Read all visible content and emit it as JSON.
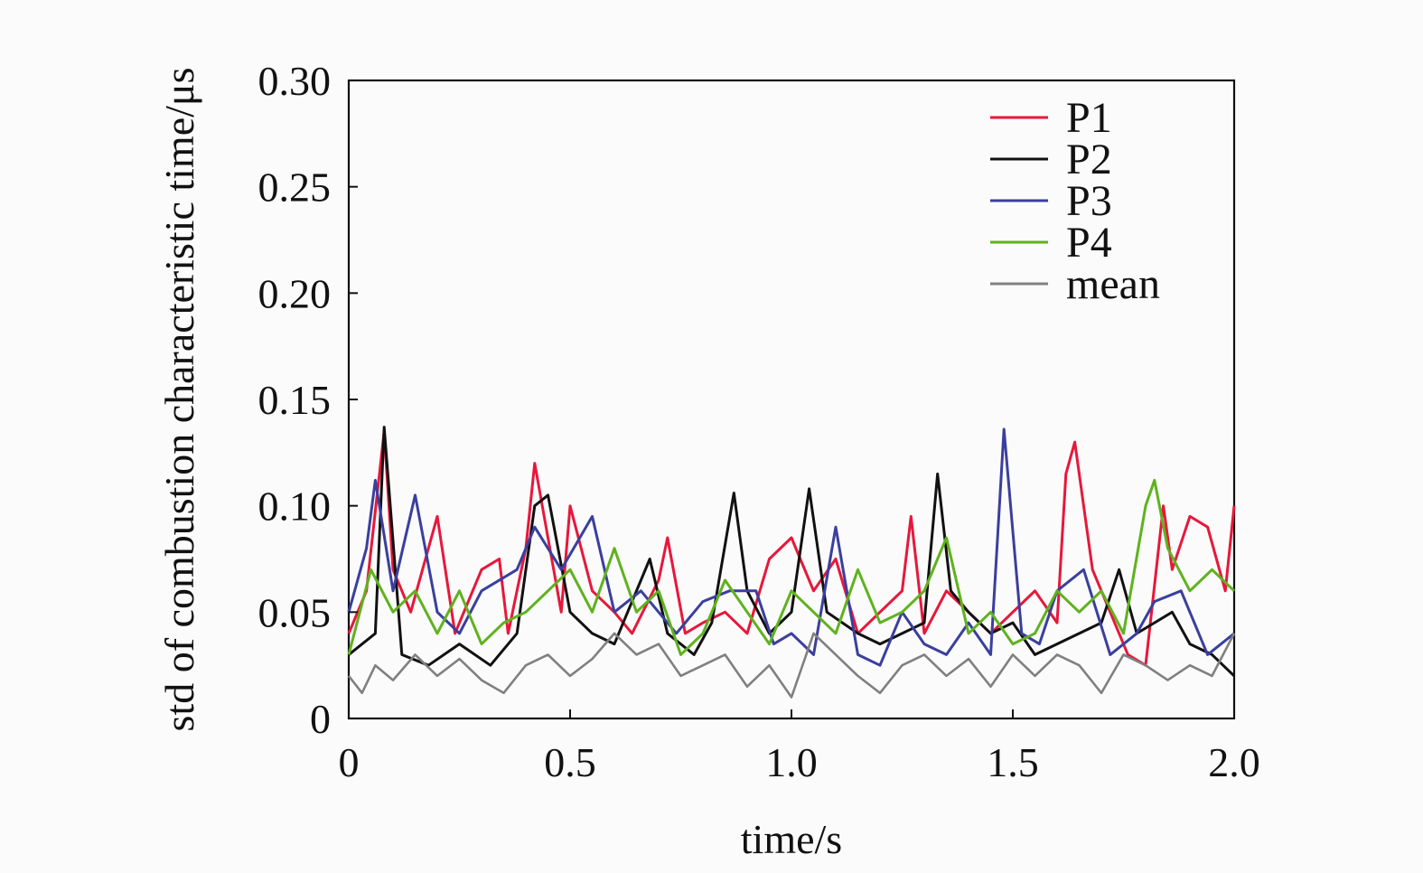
{
  "chart_data": {
    "type": "line",
    "xlabel": "time/s",
    "ylabel": "std of combustion characteristic time/μs",
    "xlim": [
      0,
      2.0
    ],
    "ylim": [
      0,
      0.3
    ],
    "x_ticks": [
      "0",
      "0.5",
      "1.0",
      "1.5",
      "2.0"
    ],
    "y_ticks": [
      "0",
      "0.05",
      "0.10",
      "0.15",
      "0.20",
      "0.25",
      "0.30"
    ],
    "grid": false,
    "legend_position": "top-right",
    "series": [
      {
        "name": "P1",
        "color": "#e8173a",
        "x": [
          0,
          0.04,
          0.08,
          0.1,
          0.14,
          0.2,
          0.24,
          0.3,
          0.34,
          0.36,
          0.4,
          0.42,
          0.45,
          0.48,
          0.5,
          0.55,
          0.6,
          0.64,
          0.7,
          0.72,
          0.76,
          0.8,
          0.85,
          0.9,
          0.95,
          1.0,
          1.05,
          1.1,
          1.15,
          1.2,
          1.25,
          1.27,
          1.3,
          1.35,
          1.4,
          1.45,
          1.5,
          1.55,
          1.6,
          1.62,
          1.64,
          1.68,
          1.72,
          1.76,
          1.8,
          1.84,
          1.86,
          1.9,
          1.94,
          1.98,
          2.0
        ],
        "values": [
          0.04,
          0.06,
          0.135,
          0.07,
          0.05,
          0.095,
          0.04,
          0.07,
          0.075,
          0.04,
          0.08,
          0.12,
          0.085,
          0.05,
          0.1,
          0.06,
          0.05,
          0.04,
          0.065,
          0.085,
          0.04,
          0.045,
          0.05,
          0.04,
          0.075,
          0.085,
          0.06,
          0.075,
          0.04,
          0.05,
          0.06,
          0.095,
          0.04,
          0.06,
          0.05,
          0.04,
          0.05,
          0.06,
          0.045,
          0.115,
          0.13,
          0.07,
          0.05,
          0.03,
          0.025,
          0.1,
          0.07,
          0.095,
          0.09,
          0.06,
          0.1
        ]
      },
      {
        "name": "P2",
        "color": "#111111",
        "x": [
          0,
          0.06,
          0.08,
          0.12,
          0.18,
          0.25,
          0.32,
          0.38,
          0.42,
          0.45,
          0.5,
          0.55,
          0.6,
          0.68,
          0.72,
          0.78,
          0.82,
          0.87,
          0.9,
          0.95,
          1.0,
          1.04,
          1.08,
          1.15,
          1.2,
          1.25,
          1.3,
          1.33,
          1.36,
          1.4,
          1.45,
          1.5,
          1.55,
          1.6,
          1.65,
          1.7,
          1.74,
          1.78,
          1.82,
          1.86,
          1.9,
          1.95,
          2.0
        ],
        "values": [
          0.03,
          0.04,
          0.137,
          0.03,
          0.025,
          0.035,
          0.025,
          0.04,
          0.1,
          0.105,
          0.05,
          0.04,
          0.035,
          0.075,
          0.04,
          0.03,
          0.045,
          0.106,
          0.06,
          0.04,
          0.05,
          0.108,
          0.05,
          0.04,
          0.035,
          0.04,
          0.045,
          0.115,
          0.06,
          0.05,
          0.04,
          0.045,
          0.03,
          0.035,
          0.04,
          0.045,
          0.07,
          0.04,
          0.045,
          0.05,
          0.035,
          0.03,
          0.02
        ]
      },
      {
        "name": "P3",
        "color": "#3a3f9e",
        "x": [
          0,
          0.04,
          0.06,
          0.1,
          0.15,
          0.2,
          0.25,
          0.3,
          0.38,
          0.42,
          0.48,
          0.55,
          0.6,
          0.66,
          0.74,
          0.8,
          0.86,
          0.92,
          0.96,
          1.0,
          1.05,
          1.1,
          1.15,
          1.2,
          1.25,
          1.3,
          1.35,
          1.4,
          1.45,
          1.48,
          1.52,
          1.56,
          1.6,
          1.66,
          1.72,
          1.78,
          1.82,
          1.88,
          1.94,
          2.0
        ],
        "values": [
          0.05,
          0.08,
          0.112,
          0.06,
          0.105,
          0.05,
          0.04,
          0.06,
          0.07,
          0.09,
          0.07,
          0.095,
          0.05,
          0.06,
          0.04,
          0.055,
          0.06,
          0.06,
          0.035,
          0.04,
          0.03,
          0.09,
          0.03,
          0.025,
          0.05,
          0.035,
          0.03,
          0.045,
          0.03,
          0.136,
          0.04,
          0.035,
          0.06,
          0.07,
          0.03,
          0.04,
          0.055,
          0.06,
          0.03,
          0.04
        ]
      },
      {
        "name": "P4",
        "color": "#5fb21e",
        "x": [
          0,
          0.05,
          0.1,
          0.15,
          0.2,
          0.25,
          0.3,
          0.35,
          0.4,
          0.45,
          0.5,
          0.55,
          0.6,
          0.65,
          0.7,
          0.75,
          0.8,
          0.85,
          0.9,
          0.95,
          1.0,
          1.05,
          1.1,
          1.15,
          1.2,
          1.25,
          1.3,
          1.35,
          1.4,
          1.45,
          1.5,
          1.55,
          1.6,
          1.65,
          1.7,
          1.75,
          1.8,
          1.82,
          1.85,
          1.9,
          1.95,
          2.0
        ],
        "values": [
          0.03,
          0.07,
          0.05,
          0.06,
          0.04,
          0.06,
          0.035,
          0.045,
          0.05,
          0.06,
          0.07,
          0.05,
          0.08,
          0.05,
          0.06,
          0.03,
          0.04,
          0.065,
          0.05,
          0.035,
          0.06,
          0.05,
          0.04,
          0.07,
          0.045,
          0.05,
          0.06,
          0.085,
          0.04,
          0.05,
          0.035,
          0.04,
          0.06,
          0.05,
          0.06,
          0.04,
          0.1,
          0.112,
          0.08,
          0.06,
          0.07,
          0.06
        ]
      },
      {
        "name": "mean",
        "color": "#808080",
        "x": [
          0,
          0.03,
          0.06,
          0.1,
          0.15,
          0.2,
          0.25,
          0.3,
          0.35,
          0.4,
          0.45,
          0.5,
          0.55,
          0.6,
          0.65,
          0.7,
          0.75,
          0.8,
          0.85,
          0.9,
          0.95,
          1.0,
          1.05,
          1.1,
          1.15,
          1.2,
          1.25,
          1.3,
          1.35,
          1.4,
          1.45,
          1.5,
          1.55,
          1.6,
          1.65,
          1.7,
          1.75,
          1.8,
          1.85,
          1.9,
          1.95,
          2.0
        ],
        "values": [
          0.02,
          0.012,
          0.025,
          0.018,
          0.03,
          0.02,
          0.028,
          0.018,
          0.012,
          0.025,
          0.03,
          0.02,
          0.028,
          0.04,
          0.03,
          0.035,
          0.02,
          0.025,
          0.03,
          0.015,
          0.025,
          0.01,
          0.04,
          0.03,
          0.02,
          0.012,
          0.025,
          0.03,
          0.02,
          0.028,
          0.015,
          0.03,
          0.02,
          0.03,
          0.025,
          0.012,
          0.03,
          0.025,
          0.018,
          0.025,
          0.02,
          0.04
        ]
      }
    ]
  }
}
